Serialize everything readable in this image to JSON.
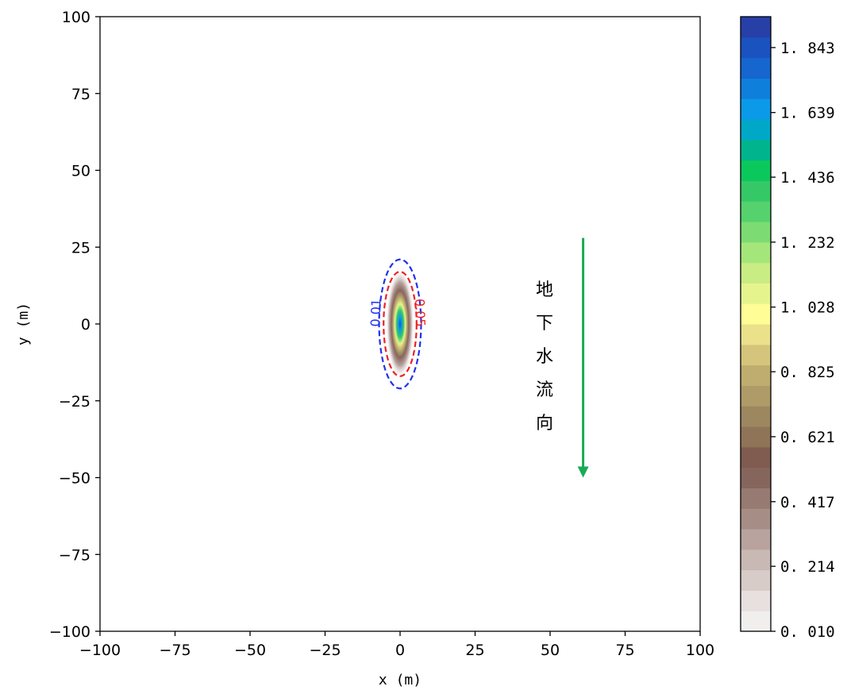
{
  "chart_data": {
    "type": "contour",
    "xlabel": "x (m)",
    "ylabel": "y (m)",
    "xlim": [
      -100,
      100
    ],
    "ylim": [
      -100,
      100
    ],
    "x_ticks": [
      -100,
      -75,
      -50,
      -25,
      0,
      25,
      50,
      75,
      100
    ],
    "y_ticks": [
      -100,
      -75,
      -50,
      -25,
      0,
      25,
      50,
      75,
      100
    ],
    "grid": false,
    "plume": {
      "center": [
        0,
        0
      ],
      "max_value": 1.94,
      "extent_half_width": [
        4.5,
        17
      ],
      "contour_lines": [
        {
          "level": "0.01",
          "color": "#2233ee",
          "style": "dashed",
          "half_width": 7,
          "half_height": 21
        },
        {
          "level": "0.05",
          "color": "#ee2222",
          "style": "dashed",
          "half_width": 5.5,
          "half_height": 17
        }
      ]
    },
    "colorbar": {
      "min": 0.01,
      "max": 1.94,
      "tick_values": [
        0.01,
        0.214,
        0.417,
        0.621,
        0.825,
        1.028,
        1.232,
        1.436,
        1.639,
        1.843
      ],
      "tick_labels": [
        "0. 010",
        "0. 214",
        "0. 417",
        "0. 621",
        "0. 825",
        "1. 028",
        "1. 232",
        "1. 436",
        "1. 639",
        "1. 843"
      ],
      "colors": [
        "#f1efee",
        "#e7e0de",
        "#d8ccc9",
        "#c8b9b5",
        "#b8a39f",
        "#a68d86",
        "#977a72",
        "#86665c",
        "#805b4f",
        "#8f7457",
        "#9c8760",
        "#ae9b68",
        "#bfad6f",
        "#d5c47b",
        "#ebe18b",
        "#fefd96",
        "#e6f48e",
        "#c9ec84",
        "#a5e67a",
        "#7cdc73",
        "#55d26d",
        "#35c866",
        "#0bc85c",
        "#00b48e",
        "#00a8c8",
        "#0a9ae8",
        "#0f7fdc",
        "#1566cf",
        "#1a52c0",
        "#2640a8"
      ]
    },
    "annotation": {
      "text_chars": [
        "地",
        "下",
        "水",
        "流",
        "向"
      ],
      "arrow_color": "#1aaa55",
      "arrow_x": 61,
      "arrow_from_y": 28,
      "arrow_to_y": -50
    }
  }
}
